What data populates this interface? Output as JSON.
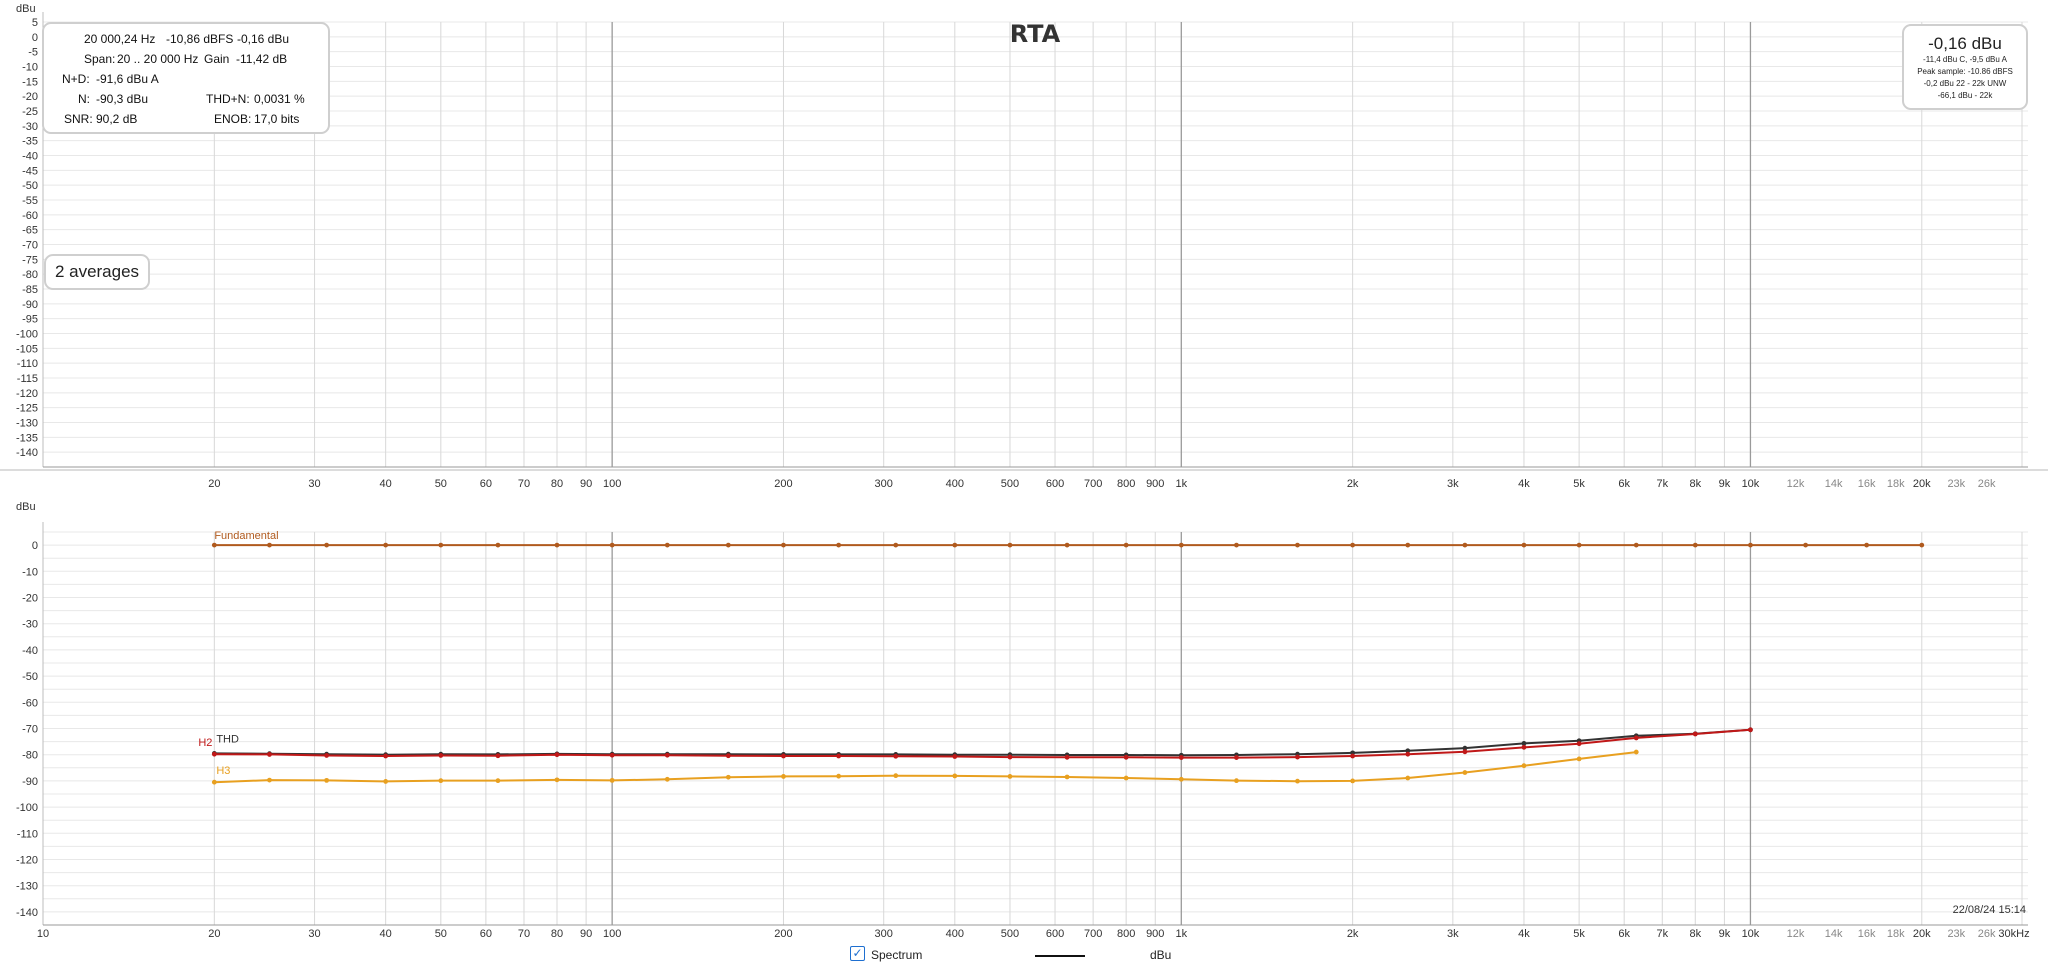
{
  "title": "RTA",
  "info": {
    "freq": "20 000,24 Hz",
    "dbfs": "-10,86 dBFS",
    "dbu": "-0,16 dBu",
    "span_label": "Span:",
    "span_value": "20 .. 20 000 Hz",
    "gain_label": "Gain",
    "gain_value": "-11,42 dB",
    "nd_label": "N+D:",
    "nd_value": "-91,6 dBu A",
    "n_label": "N:",
    "n_value": "-90,3 dBu",
    "thdn_label": "THD+N:",
    "thdn_value": "0,0031 %",
    "snr_label": "SNR:",
    "snr_value": "90,2 dB",
    "enob_label": "ENOB:",
    "enob_value": "17,0 bits"
  },
  "averages": "2 averages",
  "peak": {
    "main": "-0,16 dBu",
    "line1": "-11,4 dBu C, -9,5 dBu A",
    "line2": "Peak sample: -10.86 dBFS",
    "line3": "-0,2 dBu 22 - 22k UNW",
    "line4": "-66,1 dBu - 22k"
  },
  "timestamp": "22/08/24 15:14",
  "legend": {
    "spectrum": "Spectrum",
    "unit": "dBu"
  },
  "colors": {
    "fundamental": "#b05a1e",
    "thd": "#333333",
    "h2": "#c01818",
    "h3": "#e8a020",
    "checkbox": "#1e6fd0"
  },
  "chart_data": [
    {
      "type": "line",
      "title": "RTA",
      "ylabel": "dBu",
      "x_scale": "log",
      "ylim": [
        -145,
        5
      ],
      "y_ticks": [
        "5",
        "0",
        "-5",
        "-10",
        "-15",
        "-20",
        "-25",
        "-30",
        "-35",
        "-40",
        "-45",
        "-50",
        "-55",
        "-60",
        "-65",
        "-70",
        "-75",
        "-80",
        "-85",
        "-90",
        "-95",
        "-100",
        "-105",
        "-110",
        "-115",
        "-120",
        "-125",
        "-130",
        "-135",
        "-140"
      ],
      "x_ticks": [
        "20",
        "30",
        "40",
        "50",
        "60",
        "70",
        "80",
        "90",
        "100",
        "200",
        "300",
        "400",
        "500",
        "600",
        "700",
        "800",
        "900",
        "1k",
        "2k",
        "3k",
        "4k",
        "5k",
        "6k",
        "7k",
        "8k",
        "9k",
        "10k",
        "12k",
        "14k",
        "16k",
        "18k",
        "20k",
        "23k",
        "26k"
      ],
      "grid": true,
      "series": []
    },
    {
      "type": "line",
      "ylabel": "dBu",
      "x_scale": "log",
      "ylim": [
        -145,
        5
      ],
      "xlim": [
        10,
        30000
      ],
      "y_ticks": [
        "0",
        "-10",
        "-20",
        "-30",
        "-40",
        "-50",
        "-60",
        "-70",
        "-80",
        "-90",
        "-100",
        "-110",
        "-120",
        "-130",
        "-140"
      ],
      "x_ticks": [
        "10",
        "20",
        "30",
        "40",
        "50",
        "60",
        "70",
        "80",
        "90",
        "100",
        "200",
        "300",
        "400",
        "500",
        "600",
        "700",
        "800",
        "900",
        "1k",
        "2k",
        "3k",
        "4k",
        "5k",
        "6k",
        "7k",
        "8k",
        "9k",
        "10k",
        "12k",
        "14k",
        "16k",
        "18k",
        "20k",
        "23k",
        "26k",
        "30kHz"
      ],
      "grid": true,
      "series": [
        {
          "name": "Fundamental",
          "color": "#b05a1e",
          "x": [
            20,
            25,
            31.5,
            40,
            50,
            63,
            80,
            100,
            125,
            160,
            200,
            250,
            315,
            400,
            500,
            630,
            800,
            1000,
            1250,
            1600,
            2000,
            2500,
            3150,
            4000,
            5000,
            6300,
            8000,
            10000,
            12500,
            16000,
            20000
          ],
          "y": [
            0,
            0,
            0,
            0,
            0,
            0,
            0,
            0,
            0,
            0,
            0,
            0,
            0,
            0,
            0,
            0,
            0,
            0,
            0,
            0,
            0,
            0,
            0,
            0,
            0,
            0,
            0,
            0,
            0,
            0,
            0
          ]
        },
        {
          "name": "THD",
          "color": "#333333",
          "x": [
            20,
            25,
            31.5,
            40,
            50,
            63,
            80,
            100,
            125,
            160,
            200,
            250,
            315,
            400,
            500,
            630,
            800,
            1000,
            1250,
            1600,
            2000,
            2500,
            3150,
            4000,
            5000,
            6300,
            8000,
            10000
          ],
          "y": [
            -79.5,
            -79.6,
            -79.8,
            -80.0,
            -79.8,
            -79.9,
            -79.7,
            -79.8,
            -79.8,
            -79.8,
            -79.9,
            -79.9,
            -79.9,
            -80.0,
            -80.0,
            -80.1,
            -80.1,
            -80.2,
            -80.1,
            -79.8,
            -79.3,
            -78.5,
            -77.5,
            -75.7,
            -74.7,
            -72.8,
            -72.0,
            -70.5
          ]
        },
        {
          "name": "H2",
          "color": "#c01818",
          "x": [
            20,
            25,
            31.5,
            40,
            50,
            63,
            80,
            100,
            125,
            160,
            200,
            250,
            315,
            400,
            500,
            630,
            800,
            1000,
            1250,
            1600,
            2000,
            2500,
            3150,
            4000,
            5000,
            6300,
            8000,
            10000
          ],
          "y": [
            -79.8,
            -79.9,
            -80.3,
            -80.5,
            -80.3,
            -80.4,
            -80.0,
            -80.2,
            -80.2,
            -80.4,
            -80.5,
            -80.5,
            -80.6,
            -80.7,
            -80.9,
            -81.0,
            -81.0,
            -81.1,
            -81.1,
            -80.9,
            -80.5,
            -79.8,
            -78.9,
            -77.2,
            -75.8,
            -73.6,
            -72.1,
            -70.5
          ]
        },
        {
          "name": "H3",
          "color": "#e8a020",
          "x": [
            20,
            25,
            31.5,
            40,
            50,
            63,
            80,
            100,
            125,
            160,
            200,
            250,
            315,
            400,
            500,
            630,
            800,
            1000,
            1250,
            1600,
            2000,
            2500,
            3150,
            4000,
            5000,
            6300
          ],
          "y": [
            -90.5,
            -89.7,
            -89.8,
            -90.2,
            -89.9,
            -89.9,
            -89.6,
            -89.8,
            -89.4,
            -88.6,
            -88.3,
            -88.2,
            -88.0,
            -88.1,
            -88.3,
            -88.5,
            -88.9,
            -89.4,
            -89.9,
            -90.1,
            -90.0,
            -88.9,
            -86.8,
            -84.2,
            -81.6,
            -79.0
          ]
        }
      ]
    }
  ]
}
